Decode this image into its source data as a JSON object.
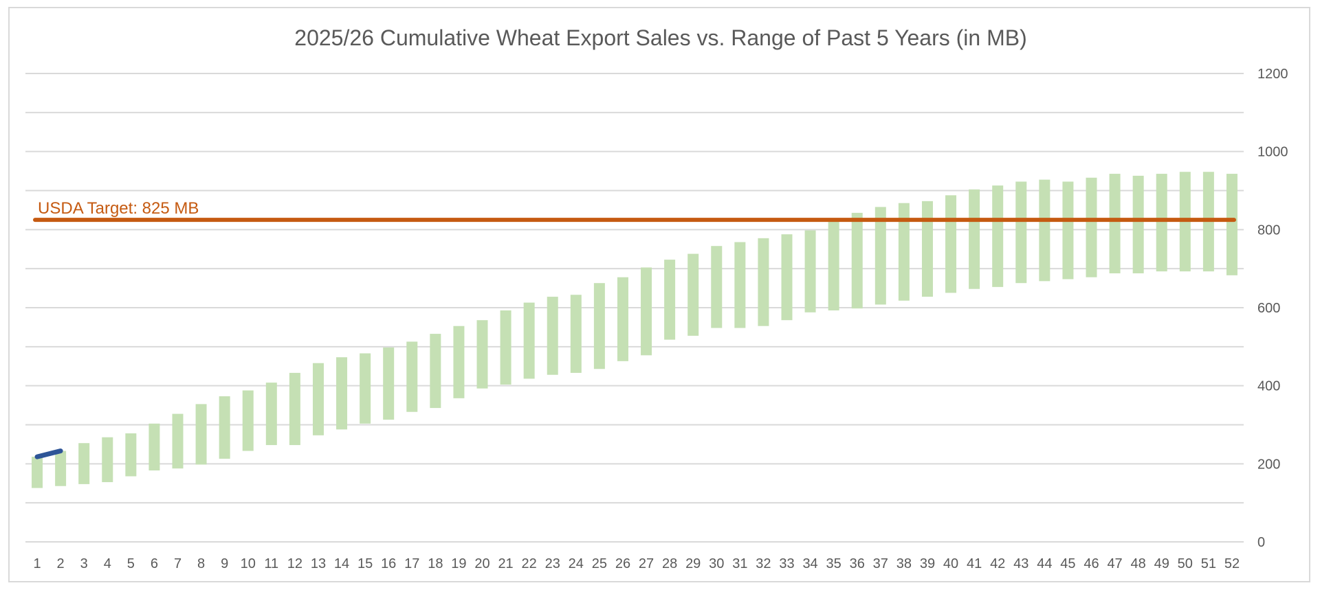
{
  "chart_data": {
    "type": "bar",
    "title": "2025/26 Cumulative Wheat Export Sales vs. Range of Past 5 Years (in MB)",
    "xlabel": "",
    "ylabel": "",
    "x_axis": {
      "categories": [
        "1",
        "2",
        "3",
        "4",
        "5",
        "6",
        "7",
        "8",
        "9",
        "10",
        "11",
        "12",
        "13",
        "14",
        "15",
        "16",
        "17",
        "18",
        "19",
        "20",
        "21",
        "22",
        "23",
        "24",
        "25",
        "26",
        "27",
        "28",
        "29",
        "30",
        "31",
        "32",
        "33",
        "34",
        "35",
        "36",
        "37",
        "38",
        "39",
        "40",
        "41",
        "42",
        "43",
        "44",
        "45",
        "46",
        "47",
        "48",
        "49",
        "50",
        "51",
        "52"
      ]
    },
    "y_axis": {
      "position": "right",
      "ylim": [
        0,
        1200
      ],
      "tick_values": [
        0,
        200,
        400,
        600,
        800,
        1000,
        1200
      ],
      "tick_labels": [
        "0",
        "200",
        "400",
        "600",
        "800",
        "1000",
        "1200"
      ],
      "minor_gridlines_every": 100
    },
    "grid": true,
    "legend": "none",
    "series": [
      {
        "kind": "floating-range-bars",
        "color": "#c5e0b4",
        "low": [
          138,
          143,
          148,
          153,
          168,
          183,
          188,
          198,
          213,
          233,
          248,
          248,
          273,
          288,
          303,
          313,
          333,
          343,
          368,
          393,
          403,
          418,
          428,
          433,
          443,
          463,
          478,
          518,
          528,
          548,
          548,
          553,
          568,
          588,
          593,
          598,
          608,
          618,
          628,
          638,
          648,
          653,
          663,
          668,
          673,
          678,
          688,
          688,
          693,
          693,
          693,
          683
        ],
        "high": [
          218,
          233,
          253,
          268,
          278,
          303,
          328,
          353,
          373,
          388,
          408,
          433,
          458,
          473,
          483,
          498,
          513,
          533,
          553,
          568,
          593,
          613,
          628,
          633,
          663,
          678,
          703,
          723,
          738,
          758,
          768,
          778,
          788,
          798,
          823,
          843,
          858,
          868,
          873,
          888,
          903,
          913,
          923,
          928,
          923,
          933,
          943,
          938,
          943,
          948,
          948,
          943
        ]
      },
      {
        "kind": "line",
        "color": "#2e5597",
        "x_start_week": 1,
        "values": [
          218,
          233
        ]
      },
      {
        "kind": "reference-line",
        "color": "#c55a11",
        "value": 825,
        "label": "USDA Target: 825 MB"
      }
    ]
  }
}
